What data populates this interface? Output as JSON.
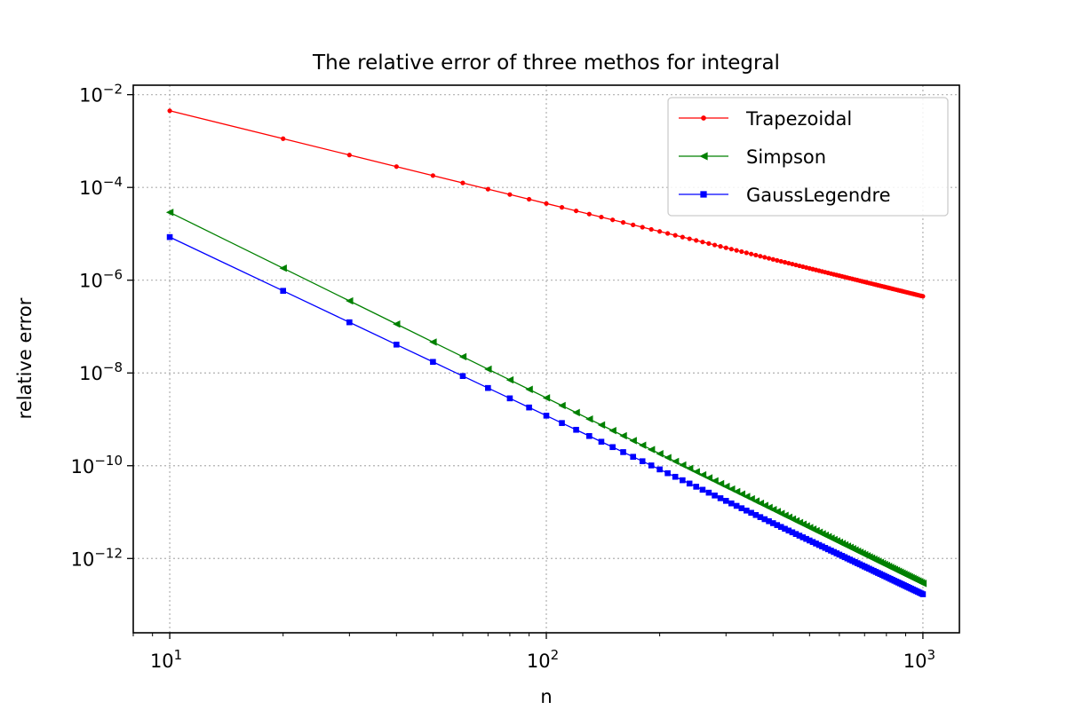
{
  "chart_data": {
    "type": "line",
    "title": "The relative error of three methos for integral",
    "xlabel": "n",
    "ylabel": "relative error",
    "xscale": "log",
    "yscale": "log",
    "xlim": [
      8,
      1250
    ],
    "ylim": [
      2.5e-14,
      0.016
    ],
    "grid": true,
    "grid_style": "dotted",
    "legend_position": "top-right",
    "x_ticks": [
      {
        "value": 10,
        "base": "10",
        "exp": "1"
      },
      {
        "value": 100,
        "base": "10",
        "exp": "2"
      },
      {
        "value": 1000,
        "base": "10",
        "exp": "3"
      }
    ],
    "y_ticks": [
      {
        "value": 0.01,
        "base": "10",
        "exp": "−2"
      },
      {
        "value": 0.0001,
        "base": "10",
        "exp": "−4"
      },
      {
        "value": 1e-06,
        "base": "10",
        "exp": "−6"
      },
      {
        "value": 1e-08,
        "base": "10",
        "exp": "−8"
      },
      {
        "value": 1e-10,
        "base": "10",
        "exp": "−10"
      },
      {
        "value": 1e-12,
        "base": "10",
        "exp": "−12"
      }
    ],
    "x": [
      10,
      20,
      30,
      40,
      50,
      60,
      70,
      80,
      90,
      100,
      110,
      120,
      130,
      140,
      150,
      160,
      170,
      180,
      190,
      200,
      210,
      220,
      230,
      240,
      250,
      260,
      270,
      280,
      290,
      300,
      310,
      320,
      330,
      340,
      350,
      360,
      370,
      380,
      390,
      400,
      410,
      420,
      430,
      440,
      450,
      460,
      470,
      480,
      490,
      500,
      510,
      520,
      530,
      540,
      550,
      560,
      570,
      580,
      590,
      600,
      610,
      620,
      630,
      640,
      650,
      660,
      670,
      680,
      690,
      700,
      710,
      720,
      730,
      740,
      750,
      760,
      770,
      780,
      790,
      800,
      810,
      820,
      830,
      840,
      850,
      860,
      870,
      880,
      890,
      900,
      910,
      920,
      930,
      940,
      950,
      960,
      970,
      980,
      990,
      1000
    ],
    "series": [
      {
        "name": "Trapezoidal",
        "color": "#ff0000",
        "marker": "circle",
        "law": {
          "c": 0.0045,
          "p": 2
        }
      },
      {
        "name": "Simpson",
        "color": "#008000",
        "marker": "triangle-left",
        "law": {
          "c": 2.9e-05,
          "p": 4
        }
      },
      {
        "name": "GaussLegendre",
        "color": "#0000ff",
        "marker": "square",
        "law": {
          "c": 8.5e-06,
          "p": 3.85
        }
      }
    ]
  }
}
